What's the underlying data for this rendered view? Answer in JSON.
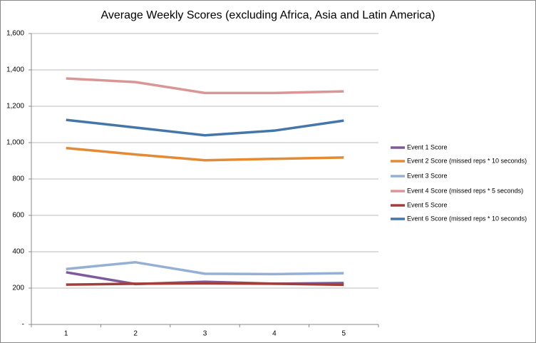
{
  "chart_data": {
    "type": "line",
    "title": "Average Weekly Scores (excluding Africa, Asia and Latin America)",
    "categories": [
      "1",
      "2",
      "3",
      "4",
      "5"
    ],
    "series": [
      {
        "name": "Event 1 Score",
        "color": "#7e5a9b",
        "values": [
          287,
          222,
          235,
          224,
          228
        ]
      },
      {
        "name": "Event 2 Score (missed reps * 10 seconds)",
        "color": "#e48a33",
        "values": [
          970,
          935,
          903,
          911,
          918
        ]
      },
      {
        "name": "Event 3 Score",
        "color": "#95b0d5",
        "values": [
          305,
          342,
          279,
          277,
          282
        ]
      },
      {
        "name": "Event 4 Score (missed reps * 5 seconds)",
        "color": "#d99694",
        "values": [
          1353,
          1333,
          1273,
          1273,
          1282
        ]
      },
      {
        "name": "Event 5 Score",
        "color": "#a33f3b",
        "values": [
          219,
          224,
          226,
          224,
          218
        ]
      },
      {
        "name": "Event 6 Score (missed reps * 10 seconds)",
        "color": "#4576a9",
        "values": [
          1125,
          1083,
          1040,
          1066,
          1121
        ]
      }
    ],
    "ylim": [
      0,
      1600
    ],
    "yticks": [
      {
        "value": 0,
        "label": "-"
      },
      200,
      400,
      600,
      800,
      {
        "value": 1000,
        "label": "1,000"
      },
      {
        "value": 1200,
        "label": "1,200"
      },
      {
        "value": 1400,
        "label": "1,400"
      },
      {
        "value": 1600,
        "label": "1,600"
      }
    ],
    "grid": true,
    "legend": "right"
  }
}
